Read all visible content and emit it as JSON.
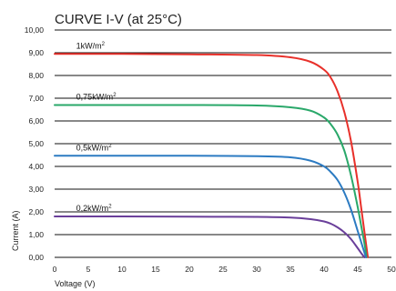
{
  "chart_data": {
    "type": "line",
    "title": "CURVE I-V (at 25°C)",
    "xlabel": "Voltage (V)",
    "ylabel": "Current (A)",
    "xlim": [
      0,
      50
    ],
    "ylim": [
      0,
      10
    ],
    "x_ticks": [
      "0",
      "5",
      "10",
      "15",
      "20",
      "25",
      "30",
      "35",
      "40",
      "45",
      "50"
    ],
    "y_ticks": [
      "0,00",
      "1,00",
      "2,00",
      "3,00",
      "4,00",
      "5,00",
      "6,00",
      "7,00",
      "8,00",
      "9,00",
      "10,00"
    ],
    "grid": {
      "horizontal": true,
      "vertical": false
    },
    "series": [
      {
        "name": "1kW/m²",
        "color": "#e8302a",
        "x": [
          0,
          10,
          20,
          30,
          35,
          38,
          40,
          41,
          42,
          43,
          44,
          45,
          45.5,
          46,
          46.5
        ],
        "y": [
          8.95,
          8.95,
          8.93,
          8.9,
          8.8,
          8.6,
          8.25,
          7.9,
          7.3,
          6.4,
          5.1,
          3.3,
          2.2,
          1.1,
          0
        ]
      },
      {
        "name": "0,75kW/m²",
        "color": "#2aa86a",
        "x": [
          0,
          10,
          20,
          30,
          35,
          38,
          40,
          41,
          42,
          43,
          44,
          45,
          45.5,
          46,
          46.3
        ],
        "y": [
          6.7,
          6.7,
          6.7,
          6.68,
          6.6,
          6.45,
          6.15,
          5.85,
          5.4,
          4.7,
          3.6,
          2.2,
          1.4,
          0.6,
          0
        ]
      },
      {
        "name": "0,5kW/m²",
        "color": "#2c7bc2",
        "x": [
          0,
          10,
          20,
          30,
          35,
          38,
          40,
          41,
          42,
          43,
          44,
          45,
          46,
          46.2
        ],
        "y": [
          4.47,
          4.47,
          4.47,
          4.45,
          4.4,
          4.25,
          4.0,
          3.75,
          3.4,
          2.85,
          2.1,
          1.15,
          0.2,
          0
        ]
      },
      {
        "name": "0,2kW/m²",
        "color": "#6a3f9a",
        "x": [
          0,
          10,
          20,
          30,
          35,
          38,
          40,
          41,
          42,
          43,
          44,
          45,
          45.6,
          46
        ],
        "y": [
          1.8,
          1.8,
          1.79,
          1.78,
          1.75,
          1.68,
          1.58,
          1.48,
          1.32,
          1.1,
          0.8,
          0.4,
          0.15,
          0
        ]
      }
    ],
    "annotations": [
      {
        "text": "1kW/m",
        "sup": "2",
        "series": 0
      },
      {
        "text": "0,75kW/m",
        "sup": "2",
        "series": 1
      },
      {
        "text": "0,5kW/m",
        "sup": "2",
        "series": 2
      },
      {
        "text": "0,2kW/m",
        "sup": "2",
        "series": 3
      }
    ]
  }
}
